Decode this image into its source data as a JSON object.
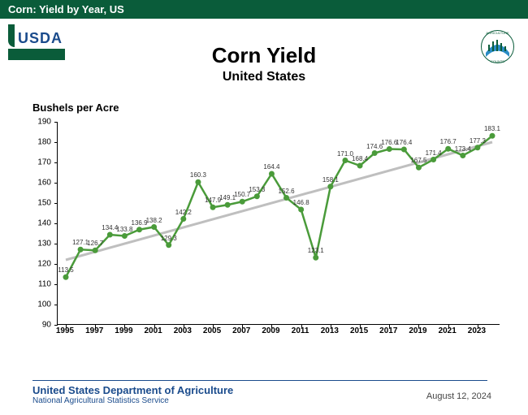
{
  "header": {
    "bar_text": "Corn: Yield by Year, US"
  },
  "logo": {
    "text": "USDA"
  },
  "badge": {
    "top_text": "AGRICULTURE",
    "bottom_text": "COUNTS"
  },
  "title": {
    "main": "Corn Yield",
    "sub": "United States"
  },
  "chart": {
    "type": "line",
    "y_axis_title": "Bushels per Acre",
    "ylim": [
      90,
      190
    ],
    "ytick_step": 10,
    "yticks": [
      90,
      100,
      110,
      120,
      130,
      140,
      150,
      160,
      170,
      180,
      190
    ],
    "xticks": [
      1995,
      1997,
      1999,
      2001,
      2003,
      2005,
      2007,
      2009,
      2011,
      2013,
      2015,
      2017,
      2019,
      2021,
      2023
    ],
    "x_start": 1995,
    "x_end": 2024,
    "series": {
      "years": [
        1995,
        1996,
        1997,
        1998,
        1999,
        2000,
        2001,
        2002,
        2003,
        2004,
        2005,
        2006,
        2007,
        2008,
        2009,
        2010,
        2011,
        2012,
        2013,
        2014,
        2015,
        2016,
        2017,
        2018,
        2019,
        2020,
        2021,
        2022,
        2023,
        2024
      ],
      "values": [
        113.5,
        127.1,
        126.7,
        134.4,
        133.8,
        136.9,
        138.2,
        129.3,
        142.2,
        160.3,
        147.9,
        149.1,
        150.7,
        153.3,
        164.4,
        152.6,
        146.8,
        123.1,
        158.1,
        171.0,
        168.4,
        174.6,
        176.6,
        176.4,
        167.5,
        171.4,
        176.7,
        173.4,
        177.3,
        183.1
      ],
      "labels": [
        "113.5",
        "127.1",
        "126.7",
        "134.4",
        "133.8",
        "136.9",
        "138.2",
        "129.3",
        "142.2",
        "160.3",
        "147.9",
        "149.1",
        "150.7",
        "153.3",
        "164.4",
        "152.6",
        "146.8",
        "123.1",
        "158.1",
        "171.0",
        "168.4",
        "174.6",
        "176.6",
        "176.4",
        "167.5",
        "171.4",
        "176.7",
        "173.4",
        "177.3",
        "183.1"
      ]
    },
    "trend": {
      "x": [
        1995,
        2024
      ],
      "y": [
        122,
        180
      ]
    },
    "line_color": "#4a9b3a",
    "marker_color": "#4a9b3a",
    "trend_color": "#bfbfbf",
    "line_width": 2.5,
    "trend_width": 3,
    "marker_radius": 3.5,
    "background_color": "#ffffff"
  },
  "footer": {
    "main": "United States Department of Agriculture",
    "sub": "National Agricultural Statistics Service",
    "date": "August 12, 2024"
  }
}
